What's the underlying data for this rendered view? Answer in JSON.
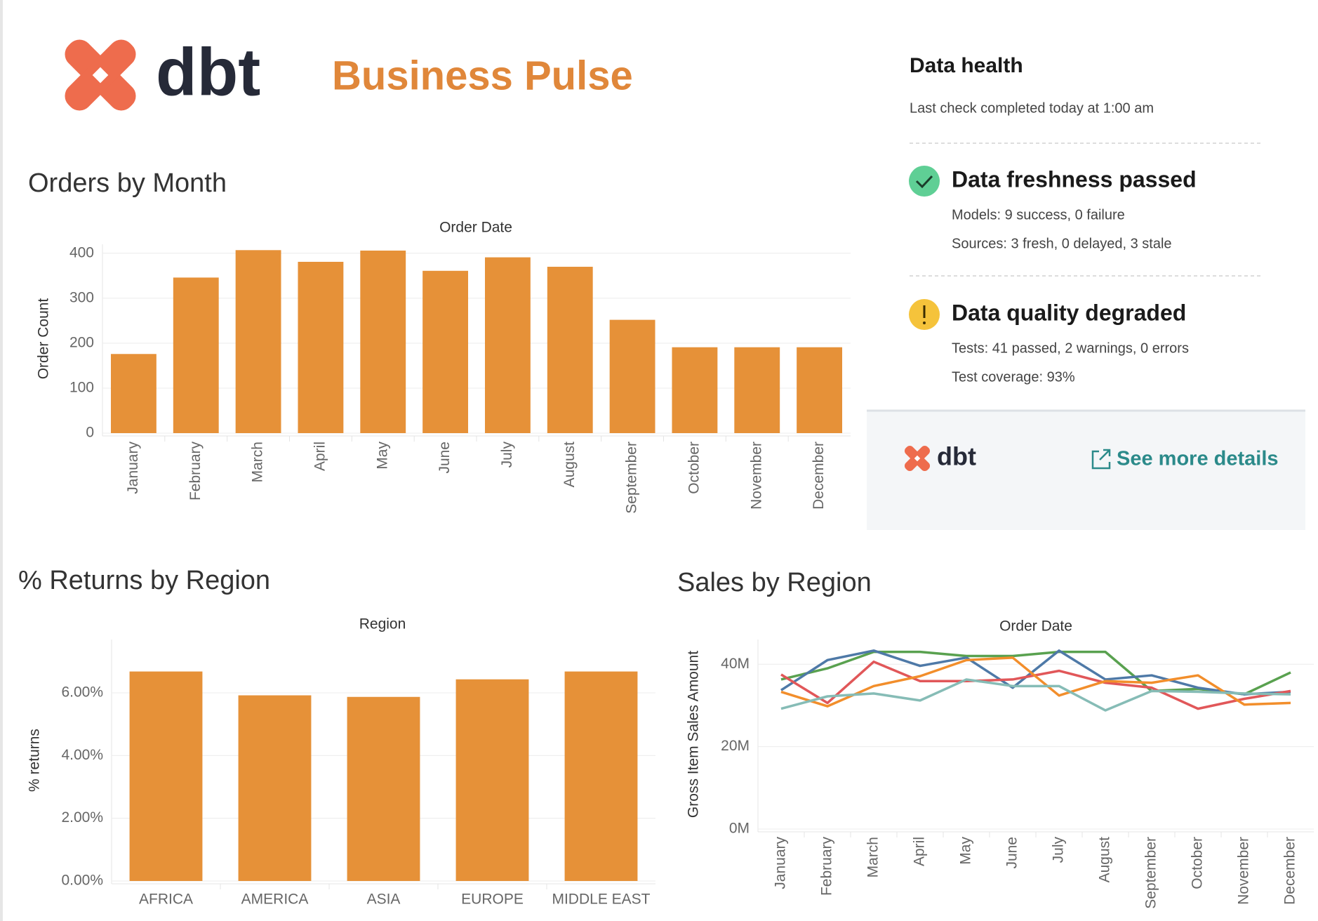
{
  "header": {
    "logo_text": "dbt",
    "title": "Business Pulse"
  },
  "health": {
    "title": "Data health",
    "subtitle": "Last check completed today at 1:00 am",
    "checks": [
      {
        "title": "Data freshness passed",
        "lines": [
          "Models: 9 success, 0 failure",
          "Sources: 3 fresh, 0 delayed, 3 stale"
        ]
      },
      {
        "title": "Data quality degraded",
        "lines": [
          "Tests: 41 passed, 2 warnings, 0 errors",
          "Test coverage: 93%"
        ]
      }
    ],
    "footer": {
      "logo_text": "dbt",
      "link": "See more details"
    }
  },
  "chart_data": [
    {
      "type": "bar",
      "title": "Orders by Month",
      "x_label": "Order Date",
      "y_label": "Order Count",
      "categories": [
        "January",
        "February",
        "March",
        "April",
        "May",
        "June",
        "July",
        "August",
        "September",
        "October",
        "November",
        "December"
      ],
      "values": [
        176,
        346,
        407,
        381,
        406,
        361,
        391,
        370,
        252,
        191,
        191,
        191
      ],
      "color": "#e69138",
      "ylim": [
        0,
        420
      ],
      "yticks": [
        0,
        100,
        200,
        300,
        400
      ],
      "grid": true
    },
    {
      "type": "bar",
      "title": "% Returns by Region",
      "x_label": "Region",
      "y_label": "% returns",
      "categories": [
        "AFRICA",
        "AMERICA",
        "ASIA",
        "EUROPE",
        "MIDDLE EAST"
      ],
      "values": [
        6.68,
        5.92,
        5.87,
        6.43,
        6.68
      ],
      "color": "#e69138",
      "ylim": [
        0,
        7.7
      ],
      "yticks": [
        {
          "value": 0,
          "label": "0.00%"
        },
        {
          "value": 2,
          "label": "2.00%"
        },
        {
          "value": 4,
          "label": "4.00%"
        },
        {
          "value": 6,
          "label": "6.00%"
        }
      ],
      "grid": true
    },
    {
      "type": "line",
      "title": "Sales by Region",
      "x_label": "Order Date",
      "y_label": "Gross Item Sales Amount",
      "categories": [
        "January",
        "February",
        "March",
        "April",
        "May",
        "June",
        "July",
        "August",
        "September",
        "October",
        "November",
        "December"
      ],
      "series": [
        {
          "color": "#59a14f",
          "values": [
            36300000,
            39000000,
            43000000,
            43000000,
            42000000,
            42000000,
            43000000,
            43000000,
            33500000,
            34000000,
            32700000,
            38000000
          ]
        },
        {
          "color": "#4e79a7",
          "values": [
            33700000,
            41000000,
            43300000,
            39600000,
            41600000,
            34300000,
            43300000,
            36300000,
            37300000,
            34300000,
            32700000,
            33300000
          ]
        },
        {
          "color": "#e15759",
          "values": [
            37500000,
            30600000,
            40600000,
            35900000,
            35900000,
            36300000,
            38400000,
            35500000,
            34300000,
            29200000,
            31600000,
            33500000
          ]
        },
        {
          "color": "#f28e2b",
          "values": [
            33300000,
            29800000,
            34700000,
            37100000,
            41000000,
            41600000,
            32400000,
            35900000,
            35500000,
            37300000,
            30200000,
            30600000
          ]
        },
        {
          "color": "#86bcb6",
          "values": [
            29200000,
            32200000,
            32900000,
            31200000,
            36300000,
            34700000,
            34700000,
            28800000,
            33500000,
            33300000,
            32900000,
            32700000
          ]
        }
      ],
      "ylim": [
        0,
        46000000
      ],
      "yticks": [
        {
          "value": 0,
          "label": "0M"
        },
        {
          "value": 20000000,
          "label": "20M"
        },
        {
          "value": 40000000,
          "label": "40M"
        }
      ],
      "grid": true
    }
  ]
}
